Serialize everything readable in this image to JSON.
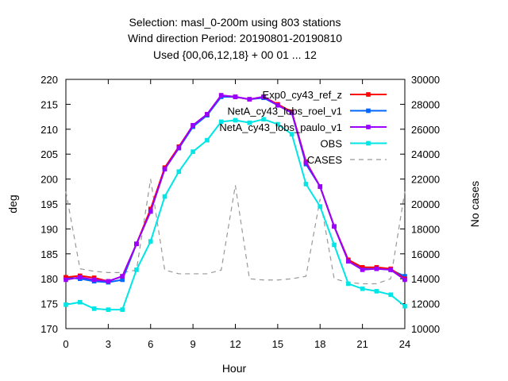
{
  "chart_data": {
    "type": "line",
    "title_lines": [
      "Selection: masl_0-200m using   803 stations",
      "Wind direction   Period: 20190801-20190810",
      "Used {00,06,12,18} + 00 01 ... 12"
    ],
    "xlabel": "Hour",
    "ylabel": "deg",
    "y2label": "No cases",
    "xlim": [
      0,
      24
    ],
    "ylim": [
      170,
      220
    ],
    "y2lim": [
      10000,
      30000
    ],
    "xticks": [
      0,
      3,
      6,
      9,
      12,
      15,
      18,
      21,
      24
    ],
    "yticks": [
      170,
      175,
      180,
      185,
      190,
      195,
      200,
      205,
      210,
      215,
      220
    ],
    "y2ticks": [
      10000,
      12000,
      14000,
      16000,
      18000,
      20000,
      22000,
      24000,
      26000,
      28000,
      30000
    ],
    "legend_position": "top-right",
    "grid": false,
    "x": [
      0,
      1,
      2,
      3,
      4,
      5,
      6,
      7,
      8,
      9,
      10,
      11,
      12,
      13,
      14,
      15,
      16,
      17,
      18,
      19,
      20,
      21,
      22,
      23,
      24
    ],
    "series": [
      {
        "name": "Exp0_cy43_ref_z",
        "color": "#ff0000",
        "axis": "y",
        "values": [
          180.3,
          180.6,
          180.2,
          179.5,
          180.5,
          187.0,
          194.0,
          202.3,
          206.5,
          210.8,
          213.0,
          216.8,
          216.5,
          216.0,
          216.5,
          215.0,
          213.5,
          203.5,
          198.5,
          190.5,
          183.8,
          182.3,
          182.3,
          182.0,
          180.0
        ]
      },
      {
        "name": "NetA_cy43_lobs_roel_v1",
        "color": "#0066ff",
        "axis": "y",
        "values": [
          180.3,
          180.0,
          179.5,
          179.3,
          179.8,
          187.0,
          193.5,
          202.0,
          206.2,
          210.5,
          212.8,
          216.5,
          216.5,
          216.0,
          216.3,
          214.8,
          213.3,
          203.0,
          198.5,
          190.5,
          183.5,
          182.0,
          182.0,
          181.8,
          180.5
        ]
      },
      {
        "name": "NetA_cy43_lobs_paulo_v1",
        "color": "#9900ff",
        "axis": "y",
        "values": [
          179.8,
          180.3,
          179.8,
          179.5,
          180.5,
          187.0,
          193.5,
          202.0,
          206.3,
          210.8,
          213.0,
          216.8,
          216.5,
          216.0,
          216.5,
          214.8,
          213.3,
          203.3,
          198.5,
          190.5,
          183.5,
          181.8,
          182.0,
          181.8,
          179.8
        ]
      },
      {
        "name": "OBS",
        "color": "#00e5e5",
        "axis": "y",
        "values": [
          174.8,
          175.3,
          174.0,
          173.8,
          173.8,
          181.8,
          187.5,
          196.5,
          201.5,
          205.5,
          207.8,
          211.5,
          211.8,
          211.3,
          212.0,
          211.0,
          209.0,
          199.0,
          194.5,
          186.8,
          179.0,
          178.0,
          177.5,
          176.8,
          174.5
        ]
      },
      {
        "name": "CASES",
        "color": "#999999",
        "axis": "y2",
        "style": "dashed",
        "values": [
          21000,
          14800,
          14600,
          14500,
          14500,
          14700,
          22000,
          14700,
          14400,
          14400,
          14400,
          14700,
          21500,
          14000,
          13900,
          13900,
          14000,
          14200,
          20400,
          14000,
          13700,
          13600,
          13600,
          14000,
          21000
        ]
      }
    ]
  }
}
